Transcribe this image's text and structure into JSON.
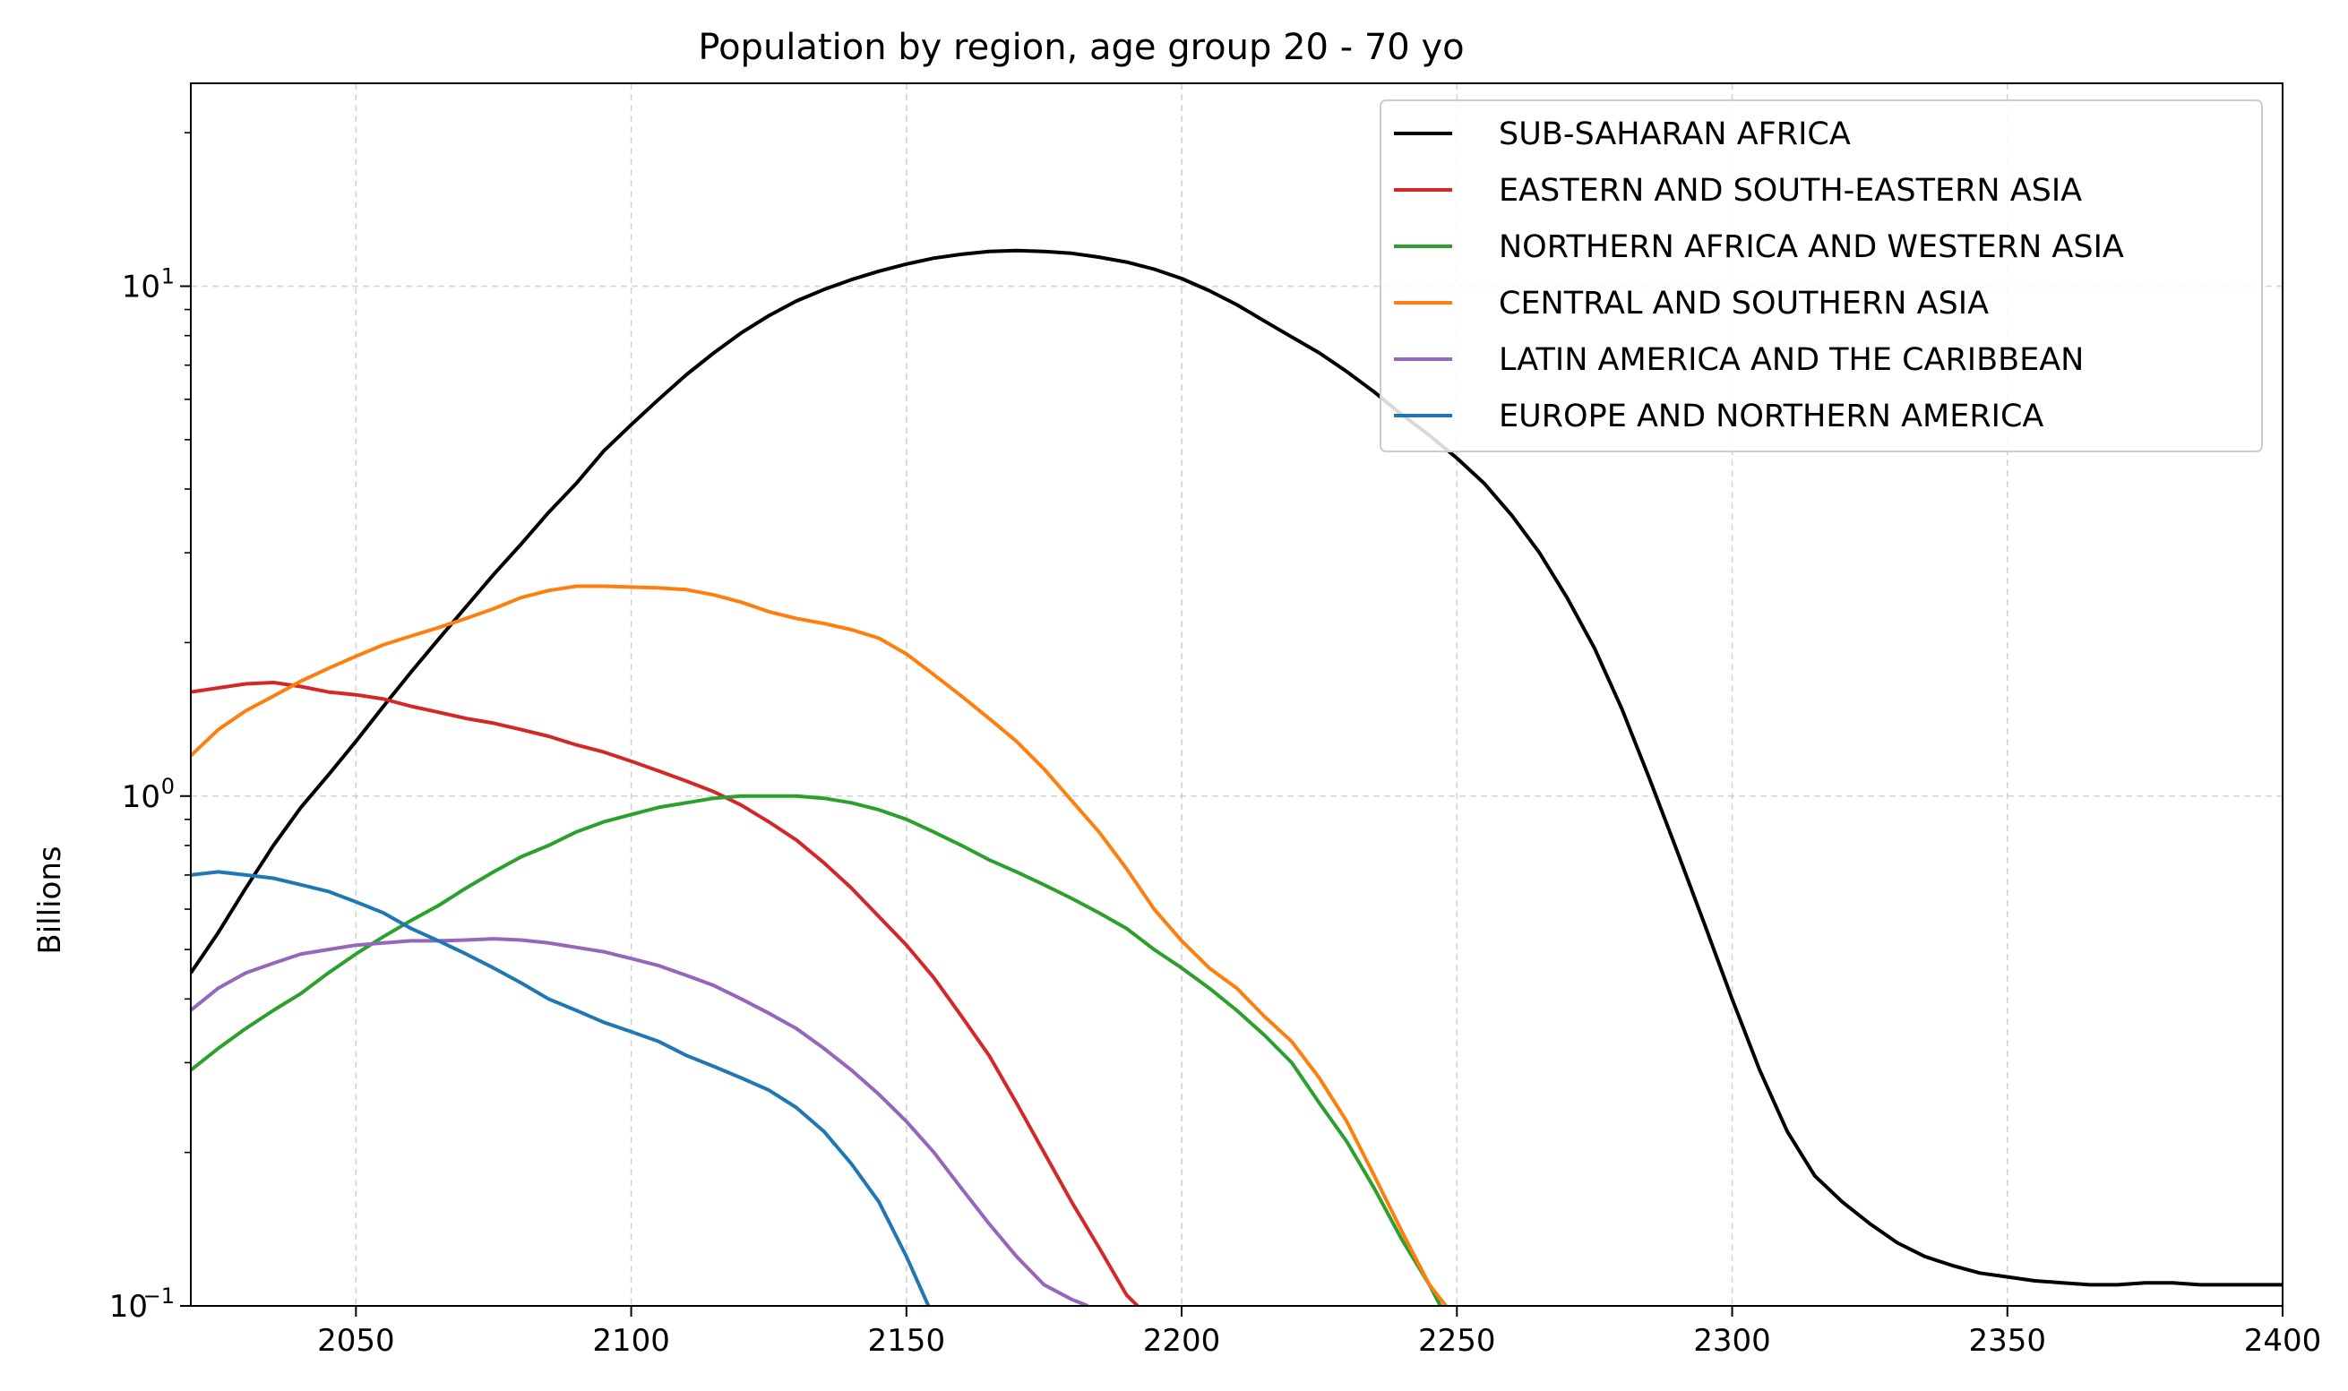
{
  "chart_data": {
    "type": "line",
    "title": "Population by region, age group 20 - 70 yo",
    "xlabel": "",
    "ylabel": "Billions",
    "yscale": "log",
    "xlim": [
      2020,
      2400
    ],
    "ylim": [
      0.1,
      25
    ],
    "grid": true,
    "legend_position": "top-right",
    "x_ticks": [
      "2050",
      "2100",
      "2150",
      "2200",
      "2250",
      "2300",
      "2350",
      "2400"
    ],
    "y_ticks": [
      {
        "value": 0.1,
        "base": "10",
        "exp": "−1"
      },
      {
        "value": 1,
        "base": "10",
        "exp": "0"
      },
      {
        "value": 10,
        "base": "10",
        "exp": "1"
      }
    ],
    "series": [
      {
        "name": "SUB-SAHARAN AFRICA",
        "color": "#000000",
        "points": [
          [
            2020,
            0.45
          ],
          [
            2025,
            0.54
          ],
          [
            2030,
            0.66
          ],
          [
            2035,
            0.8
          ],
          [
            2040,
            0.95
          ],
          [
            2045,
            1.1
          ],
          [
            2050,
            1.28
          ],
          [
            2055,
            1.5
          ],
          [
            2060,
            1.75
          ],
          [
            2065,
            2.03
          ],
          [
            2070,
            2.35
          ],
          [
            2075,
            2.72
          ],
          [
            2080,
            3.12
          ],
          [
            2085,
            3.6
          ],
          [
            2090,
            4.1
          ],
          [
            2095,
            4.75
          ],
          [
            2100,
            5.35
          ],
          [
            2105,
            6.0
          ],
          [
            2110,
            6.7
          ],
          [
            2115,
            7.4
          ],
          [
            2120,
            8.1
          ],
          [
            2125,
            8.75
          ],
          [
            2130,
            9.35
          ],
          [
            2135,
            9.85
          ],
          [
            2140,
            10.3
          ],
          [
            2145,
            10.7
          ],
          [
            2150,
            11.05
          ],
          [
            2155,
            11.35
          ],
          [
            2160,
            11.55
          ],
          [
            2165,
            11.7
          ],
          [
            2170,
            11.75
          ],
          [
            2175,
            11.7
          ],
          [
            2180,
            11.6
          ],
          [
            2185,
            11.4
          ],
          [
            2190,
            11.15
          ],
          [
            2195,
            10.8
          ],
          [
            2200,
            10.35
          ],
          [
            2205,
            9.8
          ],
          [
            2210,
            9.2
          ],
          [
            2215,
            8.55
          ],
          [
            2220,
            7.95
          ],
          [
            2225,
            7.4
          ],
          [
            2230,
            6.8
          ],
          [
            2235,
            6.2
          ],
          [
            2240,
            5.6
          ],
          [
            2245,
            5.1
          ],
          [
            2250,
            4.6
          ],
          [
            2255,
            4.1
          ],
          [
            2260,
            3.55
          ],
          [
            2265,
            3.0
          ],
          [
            2270,
            2.45
          ],
          [
            2275,
            1.95
          ],
          [
            2280,
            1.48
          ],
          [
            2285,
            1.08
          ],
          [
            2290,
            0.78
          ],
          [
            2295,
            0.56
          ],
          [
            2300,
            0.4
          ],
          [
            2305,
            0.29
          ],
          [
            2310,
            0.22
          ],
          [
            2315,
            0.18
          ],
          [
            2320,
            0.16
          ],
          [
            2325,
            0.145
          ],
          [
            2330,
            0.133
          ],
          [
            2335,
            0.125
          ],
          [
            2340,
            0.12
          ],
          [
            2345,
            0.116
          ],
          [
            2350,
            0.114
          ],
          [
            2355,
            0.112
          ],
          [
            2360,
            0.111
          ],
          [
            2365,
            0.11
          ],
          [
            2370,
            0.11
          ],
          [
            2375,
            0.111
          ],
          [
            2380,
            0.111
          ],
          [
            2385,
            0.11
          ],
          [
            2390,
            0.11
          ],
          [
            2395,
            0.11
          ],
          [
            2400,
            0.11
          ]
        ]
      },
      {
        "name": "EASTERN AND SOUTH-EASTERN ASIA",
        "color": "#d62728",
        "points": [
          [
            2020,
            1.6
          ],
          [
            2025,
            1.63
          ],
          [
            2030,
            1.66
          ],
          [
            2035,
            1.67
          ],
          [
            2040,
            1.64
          ],
          [
            2045,
            1.6
          ],
          [
            2050,
            1.58
          ],
          [
            2055,
            1.55
          ],
          [
            2060,
            1.5
          ],
          [
            2065,
            1.46
          ],
          [
            2070,
            1.42
          ],
          [
            2075,
            1.39
          ],
          [
            2080,
            1.35
          ],
          [
            2085,
            1.31
          ],
          [
            2090,
            1.26
          ],
          [
            2095,
            1.22
          ],
          [
            2100,
            1.17
          ],
          [
            2105,
            1.12
          ],
          [
            2110,
            1.07
          ],
          [
            2115,
            1.02
          ],
          [
            2120,
            0.96
          ],
          [
            2125,
            0.89
          ],
          [
            2130,
            0.82
          ],
          [
            2135,
            0.74
          ],
          [
            2140,
            0.66
          ],
          [
            2145,
            0.58
          ],
          [
            2150,
            0.51
          ],
          [
            2155,
            0.44
          ],
          [
            2160,
            0.37
          ],
          [
            2165,
            0.31
          ],
          [
            2170,
            0.25
          ],
          [
            2175,
            0.2
          ],
          [
            2180,
            0.16
          ],
          [
            2185,
            0.13
          ],
          [
            2190,
            0.105
          ],
          [
            2192,
            0.1
          ]
        ]
      },
      {
        "name": "NORTHERN AFRICA AND WESTERN ASIA",
        "color": "#2ca02c",
        "points": [
          [
            2020,
            0.29
          ],
          [
            2025,
            0.32
          ],
          [
            2030,
            0.35
          ],
          [
            2035,
            0.38
          ],
          [
            2040,
            0.41
          ],
          [
            2045,
            0.45
          ],
          [
            2050,
            0.49
          ],
          [
            2055,
            0.53
          ],
          [
            2060,
            0.57
          ],
          [
            2065,
            0.61
          ],
          [
            2070,
            0.66
          ],
          [
            2075,
            0.71
          ],
          [
            2080,
            0.76
          ],
          [
            2085,
            0.8
          ],
          [
            2090,
            0.85
          ],
          [
            2095,
            0.89
          ],
          [
            2100,
            0.92
          ],
          [
            2105,
            0.95
          ],
          [
            2110,
            0.97
          ],
          [
            2115,
            0.99
          ],
          [
            2120,
            1.0
          ],
          [
            2125,
            1.0
          ],
          [
            2130,
            1.0
          ],
          [
            2135,
            0.99
          ],
          [
            2140,
            0.97
          ],
          [
            2145,
            0.94
          ],
          [
            2150,
            0.9
          ],
          [
            2155,
            0.85
          ],
          [
            2160,
            0.8
          ],
          [
            2165,
            0.75
          ],
          [
            2170,
            0.71
          ],
          [
            2175,
            0.67
          ],
          [
            2180,
            0.63
          ],
          [
            2185,
            0.59
          ],
          [
            2190,
            0.55
          ],
          [
            2195,
            0.5
          ],
          [
            2200,
            0.46
          ],
          [
            2205,
            0.42
          ],
          [
            2210,
            0.38
          ],
          [
            2215,
            0.34
          ],
          [
            2220,
            0.3
          ],
          [
            2225,
            0.25
          ],
          [
            2230,
            0.21
          ],
          [
            2235,
            0.17
          ],
          [
            2240,
            0.135
          ],
          [
            2245,
            0.11
          ],
          [
            2247,
            0.1
          ]
        ]
      },
      {
        "name": "CENTRAL AND SOUTHERN ASIA",
        "color": "#ff7f0e",
        "points": [
          [
            2020,
            1.2
          ],
          [
            2025,
            1.35
          ],
          [
            2030,
            1.47
          ],
          [
            2035,
            1.57
          ],
          [
            2040,
            1.68
          ],
          [
            2045,
            1.78
          ],
          [
            2050,
            1.88
          ],
          [
            2055,
            1.98
          ],
          [
            2060,
            2.06
          ],
          [
            2065,
            2.14
          ],
          [
            2070,
            2.23
          ],
          [
            2075,
            2.33
          ],
          [
            2080,
            2.45
          ],
          [
            2085,
            2.53
          ],
          [
            2090,
            2.58
          ],
          [
            2095,
            2.58
          ],
          [
            2100,
            2.57
          ],
          [
            2105,
            2.56
          ],
          [
            2110,
            2.54
          ],
          [
            2115,
            2.48
          ],
          [
            2120,
            2.4
          ],
          [
            2125,
            2.3
          ],
          [
            2130,
            2.23
          ],
          [
            2135,
            2.18
          ],
          [
            2140,
            2.12
          ],
          [
            2145,
            2.04
          ],
          [
            2150,
            1.9
          ],
          [
            2155,
            1.73
          ],
          [
            2160,
            1.57
          ],
          [
            2165,
            1.42
          ],
          [
            2170,
            1.28
          ],
          [
            2175,
            1.13
          ],
          [
            2180,
            0.98
          ],
          [
            2185,
            0.85
          ],
          [
            2190,
            0.72
          ],
          [
            2195,
            0.6
          ],
          [
            2200,
            0.52
          ],
          [
            2205,
            0.46
          ],
          [
            2210,
            0.42
          ],
          [
            2215,
            0.37
          ],
          [
            2220,
            0.33
          ],
          [
            2225,
            0.28
          ],
          [
            2230,
            0.23
          ],
          [
            2235,
            0.18
          ],
          [
            2240,
            0.14
          ],
          [
            2245,
            0.11
          ],
          [
            2248,
            0.1
          ]
        ]
      },
      {
        "name": "LATIN AMERICA AND THE CARIBBEAN",
        "color": "#9467bd",
        "points": [
          [
            2020,
            0.38
          ],
          [
            2025,
            0.42
          ],
          [
            2030,
            0.45
          ],
          [
            2035,
            0.47
          ],
          [
            2040,
            0.49
          ],
          [
            2045,
            0.5
          ],
          [
            2050,
            0.51
          ],
          [
            2055,
            0.515
          ],
          [
            2060,
            0.52
          ],
          [
            2065,
            0.52
          ],
          [
            2070,
            0.522
          ],
          [
            2075,
            0.525
          ],
          [
            2080,
            0.522
          ],
          [
            2085,
            0.515
          ],
          [
            2090,
            0.505
          ],
          [
            2095,
            0.495
          ],
          [
            2100,
            0.48
          ],
          [
            2105,
            0.465
          ],
          [
            2110,
            0.445
          ],
          [
            2115,
            0.425
          ],
          [
            2120,
            0.4
          ],
          [
            2125,
            0.375
          ],
          [
            2130,
            0.35
          ],
          [
            2135,
            0.32
          ],
          [
            2140,
            0.29
          ],
          [
            2145,
            0.26
          ],
          [
            2150,
            0.23
          ],
          [
            2155,
            0.2
          ],
          [
            2160,
            0.17
          ],
          [
            2165,
            0.145
          ],
          [
            2170,
            0.125
          ],
          [
            2175,
            0.11
          ],
          [
            2180,
            0.103
          ],
          [
            2183,
            0.1
          ]
        ]
      },
      {
        "name": "EUROPE AND NORTHERN AMERICA",
        "color": "#1f77b4",
        "points": [
          [
            2020,
            0.7
          ],
          [
            2025,
            0.71
          ],
          [
            2030,
            0.7
          ],
          [
            2035,
            0.69
          ],
          [
            2040,
            0.67
          ],
          [
            2045,
            0.65
          ],
          [
            2050,
            0.62
          ],
          [
            2055,
            0.59
          ],
          [
            2060,
            0.55
          ],
          [
            2065,
            0.52
          ],
          [
            2070,
            0.49
          ],
          [
            2075,
            0.46
          ],
          [
            2080,
            0.43
          ],
          [
            2085,
            0.4
          ],
          [
            2090,
            0.38
          ],
          [
            2095,
            0.36
          ],
          [
            2100,
            0.345
          ],
          [
            2105,
            0.33
          ],
          [
            2110,
            0.31
          ],
          [
            2115,
            0.295
          ],
          [
            2120,
            0.28
          ],
          [
            2125,
            0.265
          ],
          [
            2130,
            0.245
          ],
          [
            2135,
            0.22
          ],
          [
            2140,
            0.19
          ],
          [
            2145,
            0.16
          ],
          [
            2150,
            0.125
          ],
          [
            2154,
            0.1
          ]
        ]
      }
    ]
  }
}
